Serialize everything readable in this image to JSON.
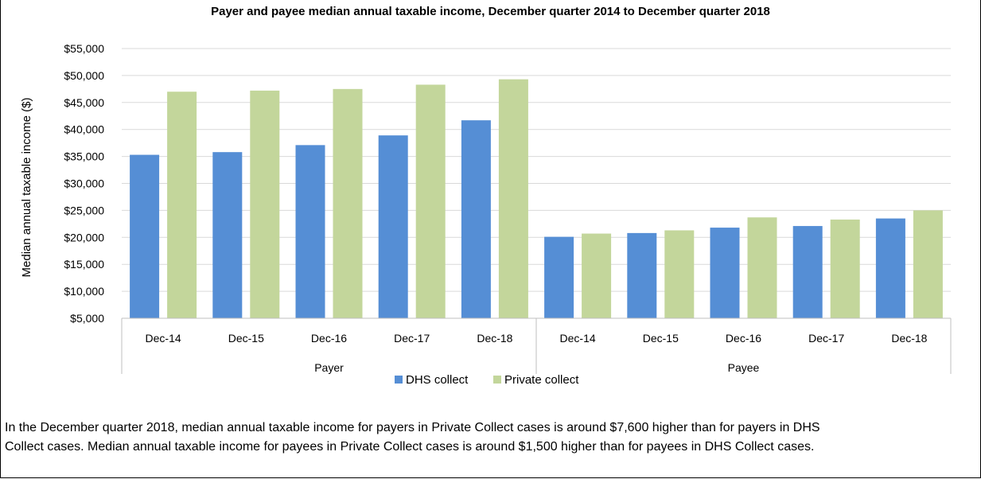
{
  "colors": {
    "dhs": "#558ED5",
    "private": "#C3D69B",
    "grid": "#D9D9D9",
    "axis": "#BFBFBF"
  },
  "chart_data": {
    "type": "bar",
    "title": "Payer and payee median annual taxable income, December quarter 2014 to  December quarter 2018",
    "ylabel": "Median annual taxable income ($)",
    "xlabel": "",
    "ylim": [
      5000,
      55000
    ],
    "y_ticks": [
      "$5,000",
      "$10,000",
      "$15,000",
      "$20,000",
      "$25,000",
      "$30,000",
      "$35,000",
      "$40,000",
      "$45,000",
      "$50,000",
      "$55,000"
    ],
    "y_tick_values": [
      5000,
      10000,
      15000,
      20000,
      25000,
      30000,
      35000,
      40000,
      45000,
      50000,
      55000
    ],
    "grid": true,
    "legend_position": "bottom",
    "groups": [
      {
        "name": "Payer",
        "categories": [
          "Dec-14",
          "Dec-15",
          "Dec-16",
          "Dec-17",
          "Dec-18"
        ]
      },
      {
        "name": "Payee",
        "categories": [
          "Dec-14",
          "Dec-15",
          "Dec-16",
          "Dec-17",
          "Dec-18"
        ]
      }
    ],
    "series": [
      {
        "name": "DHS collect",
        "values": [
          35300,
          35800,
          37100,
          38900,
          41700,
          20100,
          20800,
          21800,
          22100,
          23500
        ]
      },
      {
        "name": "Private collect",
        "values": [
          47000,
          47200,
          47500,
          48300,
          49300,
          20700,
          21300,
          23700,
          23300,
          25000
        ]
      }
    ]
  },
  "caption": {
    "line1": "In the December quarter 2018, median annual taxable income for payers in Private Collect cases is around $7,600 higher than for payers in DHS",
    "line2": "Collect cases. Median annual taxable income for payees in Private Collect cases is around $1,500 higher than for payees in DHS Collect cases."
  }
}
